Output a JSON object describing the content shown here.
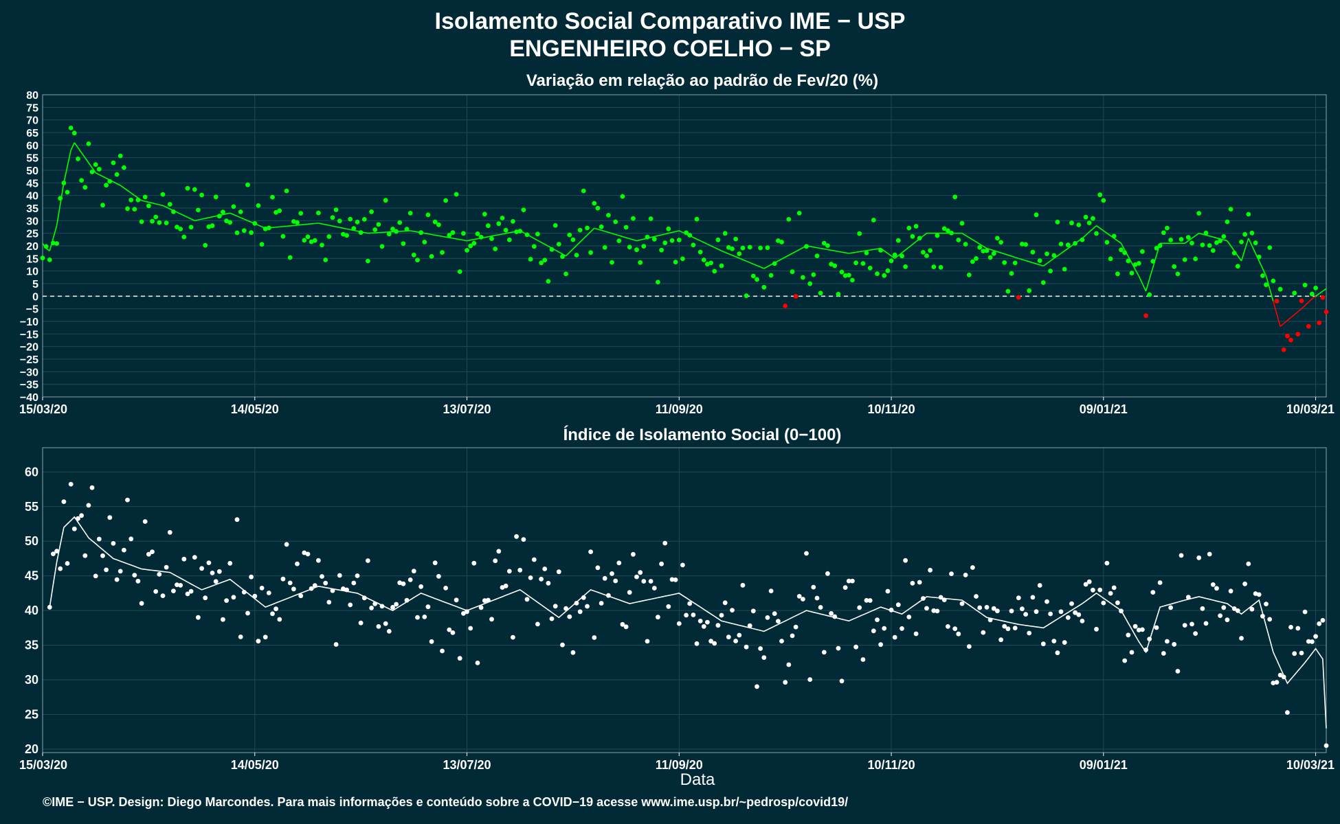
{
  "header": {
    "title_line1": "Isolamento Social Comparativo IME − USP",
    "title_line2": "ENGENHEIRO COELHO − SP"
  },
  "footer": "©IME − USP. Design: Diego Marcondes. Para mais informações e conteúdo sobre a COVID−19 acesse www.ime.usp.br/~pedrosp/covid19/",
  "colors": {
    "background": "#022a36",
    "positive": "#00ff00",
    "negative": "#ff0000",
    "index": "#ffffff",
    "grid": "#1d4a55"
  },
  "chart_data": [
    {
      "type": "scatter",
      "title": "Variação em relação ao padrão de Fev/20 (%)",
      "xlabel": "",
      "ylabel": "",
      "x_range": [
        "15/03/20",
        "13/03/21"
      ],
      "x_ticks": [
        "15/03/20",
        "14/05/20",
        "13/07/20",
        "11/09/20",
        "10/11/20",
        "09/01/21",
        "10/03/21"
      ],
      "ylim": [
        -40,
        80
      ],
      "y_ticks": [
        -40,
        -35,
        -30,
        -25,
        -20,
        -15,
        -10,
        -5,
        0,
        5,
        10,
        15,
        20,
        25,
        30,
        35,
        40,
        45,
        50,
        55,
        60,
        65,
        70,
        75,
        80
      ],
      "reference_line": 0,
      "grid": true,
      "series": [
        {
          "kind": "daily points and moving average",
          "color_rule": "green when ≥ 0, red when < 0",
          "anchors": [
            {
              "x": "15/03/20",
              "y": 21
            },
            {
              "x": "16/03/20",
              "y": 19
            },
            {
              "x": "17/03/20",
              "y": 18
            },
            {
              "x": "19/03/20",
              "y": 28
            },
            {
              "x": "21/03/20",
              "y": 45
            },
            {
              "x": "23/03/20",
              "y": 58
            },
            {
              "x": "24/03/20",
              "y": 61
            },
            {
              "x": "27/03/20",
              "y": 55
            },
            {
              "x": "30/03/20",
              "y": 49
            },
            {
              "x": "06/04/20",
              "y": 44
            },
            {
              "x": "12/04/20",
              "y": 38
            },
            {
              "x": "18/04/20",
              "y": 36
            },
            {
              "x": "27/04/20",
              "y": 30
            },
            {
              "x": "07/05/20",
              "y": 33
            },
            {
              "x": "17/05/20",
              "y": 27
            },
            {
              "x": "01/06/20",
              "y": 29
            },
            {
              "x": "15/06/20",
              "y": 25
            },
            {
              "x": "27/06/20",
              "y": 26
            },
            {
              "x": "13/07/20",
              "y": 22
            },
            {
              "x": "28/07/20",
              "y": 26
            },
            {
              "x": "10/08/20",
              "y": 16
            },
            {
              "x": "18/08/20",
              "y": 27
            },
            {
              "x": "30/08/20",
              "y": 22
            },
            {
              "x": "11/09/20",
              "y": 26
            },
            {
              "x": "23/09/20",
              "y": 18
            },
            {
              "x": "05/10/20",
              "y": 11
            },
            {
              "x": "17/10/20",
              "y": 20
            },
            {
              "x": "29/10/20",
              "y": 17
            },
            {
              "x": "07/11/20",
              "y": 19
            },
            {
              "x": "11/11/20",
              "y": 15
            },
            {
              "x": "20/11/20",
              "y": 25
            },
            {
              "x": "30/11/20",
              "y": 25
            },
            {
              "x": "07/12/20",
              "y": 19
            },
            {
              "x": "16/12/20",
              "y": 15
            },
            {
              "x": "23/12/20",
              "y": 12
            },
            {
              "x": "03/01/21",
              "y": 23
            },
            {
              "x": "07/01/21",
              "y": 28
            },
            {
              "x": "14/01/21",
              "y": 21
            },
            {
              "x": "19/01/21",
              "y": 8
            },
            {
              "x": "21/01/21",
              "y": 2
            },
            {
              "x": "25/01/21",
              "y": 21
            },
            {
              "x": "01/02/21",
              "y": 21
            },
            {
              "x": "05/02/21",
              "y": 25
            },
            {
              "x": "13/02/21",
              "y": 22
            },
            {
              "x": "17/02/21",
              "y": 14
            },
            {
              "x": "19/02/21",
              "y": 23
            },
            {
              "x": "24/02/21",
              "y": 8
            },
            {
              "x": "28/02/21",
              "y": -12
            },
            {
              "x": "06/03/21",
              "y": -5
            },
            {
              "x": "09/03/21",
              "y": -1
            },
            {
              "x": "13/03/21",
              "y": 3
            }
          ]
        }
      ]
    },
    {
      "type": "scatter",
      "title": "Índice de Isolamento Social (0−100)",
      "xlabel": "Data",
      "ylabel": "",
      "x_range": [
        "15/03/20",
        "13/03/21"
      ],
      "x_ticks": [
        "15/03/20",
        "14/05/20",
        "13/07/20",
        "11/09/20",
        "10/11/20",
        "09/01/21",
        "10/03/21"
      ],
      "ylim": [
        19.5,
        63.5
      ],
      "y_ticks": [
        20,
        25,
        30,
        35,
        40,
        45,
        50,
        55,
        60
      ],
      "grid": true,
      "series": [
        {
          "kind": "daily points and moving average",
          "anchors": [
            {
              "x": "17/03/20",
              "y": 40.5
            },
            {
              "x": "19/03/20",
              "y": 47
            },
            {
              "x": "21/03/20",
              "y": 52
            },
            {
              "x": "24/03/20",
              "y": 53.5
            },
            {
              "x": "28/03/20",
              "y": 50.5
            },
            {
              "x": "04/04/20",
              "y": 47.5
            },
            {
              "x": "12/04/20",
              "y": 46
            },
            {
              "x": "20/04/20",
              "y": 45.5
            },
            {
              "x": "29/04/20",
              "y": 43
            },
            {
              "x": "07/05/20",
              "y": 44.5
            },
            {
              "x": "17/05/20",
              "y": 40.5
            },
            {
              "x": "01/06/20",
              "y": 43.5
            },
            {
              "x": "12/06/20",
              "y": 42.5
            },
            {
              "x": "22/06/20",
              "y": 40
            },
            {
              "x": "30/06/20",
              "y": 42.5
            },
            {
              "x": "13/07/20",
              "y": 40
            },
            {
              "x": "28/07/20",
              "y": 43
            },
            {
              "x": "08/08/20",
              "y": 39
            },
            {
              "x": "17/08/20",
              "y": 43
            },
            {
              "x": "28/08/20",
              "y": 41
            },
            {
              "x": "11/09/20",
              "y": 42.5
            },
            {
              "x": "23/09/20",
              "y": 38.5
            },
            {
              "x": "05/10/20",
              "y": 37
            },
            {
              "x": "17/10/20",
              "y": 40
            },
            {
              "x": "29/10/20",
              "y": 38.5
            },
            {
              "x": "07/11/20",
              "y": 40.5
            },
            {
              "x": "13/11/20",
              "y": 39.5
            },
            {
              "x": "20/11/20",
              "y": 42
            },
            {
              "x": "30/11/20",
              "y": 41.5
            },
            {
              "x": "07/12/20",
              "y": 39
            },
            {
              "x": "16/12/20",
              "y": 38
            },
            {
              "x": "23/12/20",
              "y": 37.5
            },
            {
              "x": "03/01/21",
              "y": 41
            },
            {
              "x": "07/01/21",
              "y": 42.5
            },
            {
              "x": "14/01/21",
              "y": 40
            },
            {
              "x": "19/01/21",
              "y": 35.5
            },
            {
              "x": "21/01/21",
              "y": 34
            },
            {
              "x": "25/01/21",
              "y": 40.5
            },
            {
              "x": "01/02/21",
              "y": 41.5
            },
            {
              "x": "05/02/21",
              "y": 42
            },
            {
              "x": "13/02/21",
              "y": 41
            },
            {
              "x": "17/02/21",
              "y": 39.5
            },
            {
              "x": "22/02/21",
              "y": 41.5
            },
            {
              "x": "26/02/21",
              "y": 34
            },
            {
              "x": "02/03/21",
              "y": 29.5
            },
            {
              "x": "07/03/21",
              "y": 32.5
            },
            {
              "x": "10/03/21",
              "y": 34.5
            },
            {
              "x": "12/03/21",
              "y": 33
            },
            {
              "x": "13/03/21",
              "y": 23
            }
          ]
        }
      ]
    }
  ]
}
